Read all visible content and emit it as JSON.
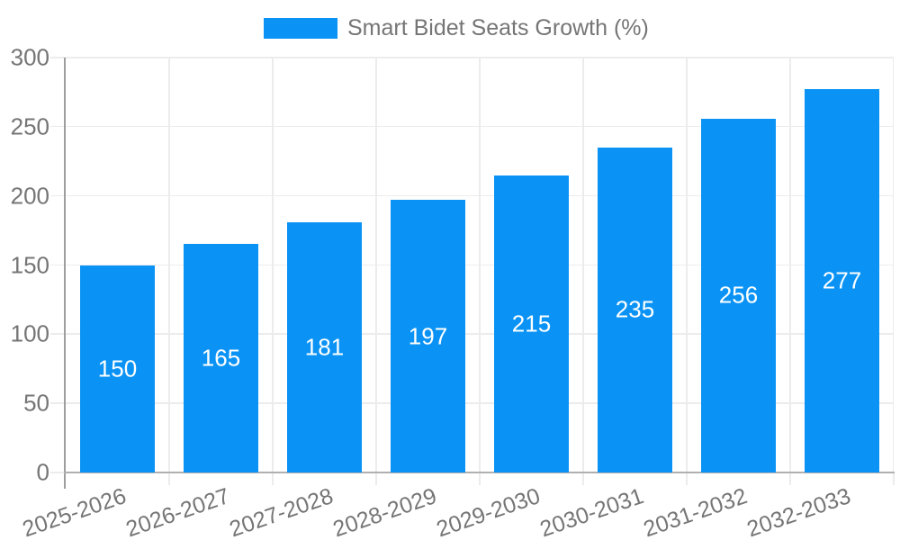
{
  "chart_data": {
    "type": "bar",
    "title": "",
    "series_name": "Smart Bidet Seats Growth (%)",
    "legend_position": "top",
    "categories": [
      "2025-2026",
      "2026-2027",
      "2027-2028",
      "2028-2029",
      "2029-2030",
      "2030-2031",
      "2031-2032",
      "2032-2033"
    ],
    "values": [
      150,
      165,
      181,
      197,
      215,
      235,
      256,
      277
    ],
    "xlabel": "",
    "ylabel": "",
    "ylim": [
      0,
      300
    ],
    "yticks": [
      0,
      50,
      100,
      150,
      200,
      250,
      300
    ],
    "grid": true,
    "value_labels_shown": true,
    "colors": {
      "bar": "#0a93f5",
      "value_text": "#ffffff",
      "axis": "#9e9e9e",
      "grid": "#ececec",
      "text": "#757575",
      "background": "#ffffff"
    }
  }
}
